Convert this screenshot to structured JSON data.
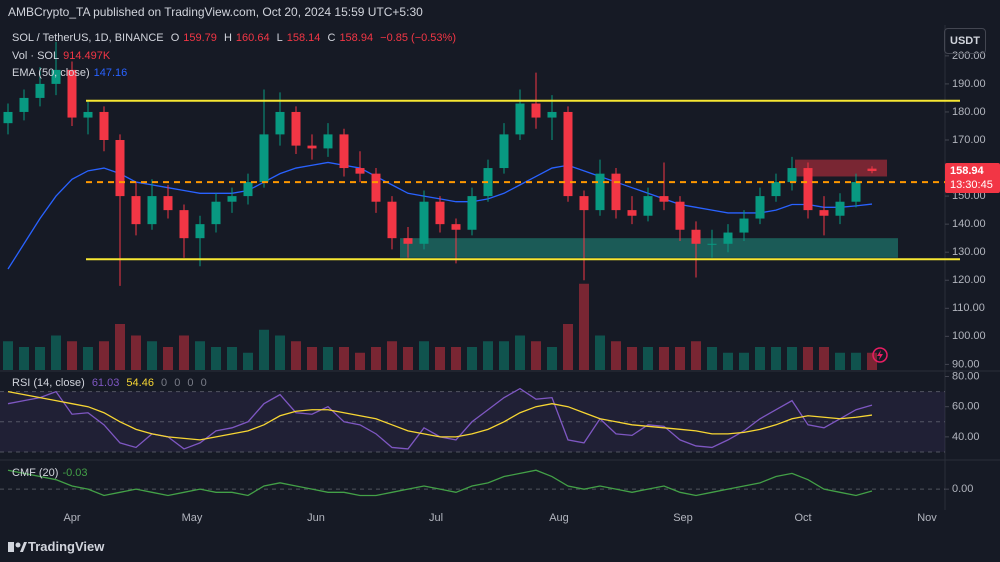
{
  "header": {
    "publisher": "AMBCrypto_TA published on TradingView.com, Oct 20, 2024 15:59 UTC+5:30",
    "currency": "USDT"
  },
  "chart_data": [
    {
      "type": "candlestick",
      "symbol": "SOL / TetherUS, 1D, BINANCE",
      "ohlc_labels": [
        "O",
        "H",
        "L",
        "C"
      ],
      "ohlc_last": [
        159.79,
        160.64,
        158.14,
        158.94
      ],
      "change": "−0.85 (−0.53%)",
      "price_label": 158.94,
      "countdown": "13:30:45",
      "ylim": [
        88,
        211
      ],
      "yticks": [
        {
          "value": 90,
          "label": "90.00"
        },
        {
          "value": 100,
          "label": "100.00"
        },
        {
          "value": 110,
          "label": "110.00"
        },
        {
          "value": 120,
          "label": "120.00"
        },
        {
          "value": 130,
          "label": "130.00"
        },
        {
          "value": 140,
          "label": "140.00"
        },
        {
          "value": 150,
          "label": "150.00"
        },
        {
          "value": 160,
          "label": "160.00"
        },
        {
          "value": 170,
          "label": "170.00"
        },
        {
          "value": 180,
          "label": "180.00"
        },
        {
          "value": 190,
          "label": "190.00"
        },
        {
          "value": 200,
          "label": "200.00"
        }
      ],
      "x_labels": [
        "Apr",
        "May",
        "Jun",
        "Jul",
        "Aug",
        "Sep",
        "Oct",
        "Nov"
      ],
      "up_color": "#089981",
      "down_color": "#f23645",
      "candles": [
        [
          176,
          183,
          172,
          180
        ],
        [
          180,
          188,
          177,
          185
        ],
        [
          185,
          196,
          182,
          190
        ],
        [
          190,
          205,
          186,
          195
        ],
        [
          195,
          198,
          175,
          178
        ],
        [
          178,
          184,
          172,
          180
        ],
        [
          180,
          182,
          166,
          170
        ],
        [
          170,
          172,
          118,
          150
        ],
        [
          150,
          155,
          136,
          140
        ],
        [
          140,
          156,
          138,
          150
        ],
        [
          150,
          154,
          142,
          145
        ],
        [
          145,
          147,
          128,
          135
        ],
        [
          135,
          143,
          125,
          140
        ],
        [
          140,
          151,
          137,
          148
        ],
        [
          148,
          153,
          144,
          150
        ],
        [
          150,
          158,
          147,
          155
        ],
        [
          155,
          188,
          153,
          172
        ],
        [
          172,
          187,
          168,
          180
        ],
        [
          180,
          182,
          165,
          168
        ],
        [
          168,
          172,
          163,
          167
        ],
        [
          167,
          176,
          164,
          172
        ],
        [
          172,
          174,
          157,
          160
        ],
        [
          160,
          166,
          155,
          158
        ],
        [
          158,
          160,
          144,
          148
        ],
        [
          148,
          150,
          131,
          135
        ],
        [
          135,
          139,
          128,
          133
        ],
        [
          133,
          152,
          131,
          148
        ],
        [
          148,
          150,
          137,
          140
        ],
        [
          140,
          142,
          126,
          138
        ],
        [
          138,
          153,
          136,
          150
        ],
        [
          150,
          163,
          148,
          160
        ],
        [
          160,
          176,
          158,
          172
        ],
        [
          172,
          188,
          170,
          183
        ],
        [
          183,
          194,
          174,
          178
        ],
        [
          178,
          186,
          170,
          180
        ],
        [
          180,
          182,
          148,
          150
        ],
        [
          150,
          152,
          120,
          145
        ],
        [
          145,
          163,
          143,
          158
        ],
        [
          158,
          160,
          142,
          145
        ],
        [
          145,
          150,
          140,
          143
        ],
        [
          143,
          153,
          141,
          150
        ],
        [
          150,
          162,
          145,
          148
        ],
        [
          148,
          150,
          134,
          138
        ],
        [
          138,
          141,
          121,
          133
        ],
        [
          133,
          138,
          128,
          133
        ],
        [
          133,
          140,
          130,
          137
        ],
        [
          137,
          145,
          134,
          142
        ],
        [
          142,
          153,
          140,
          150
        ],
        [
          150,
          158,
          148,
          155
        ],
        [
          155,
          164,
          152,
          160
        ],
        [
          160,
          162,
          142,
          145
        ],
        [
          145,
          150,
          136,
          143
        ],
        [
          143,
          151,
          140,
          148
        ],
        [
          148,
          158,
          146,
          155
        ],
        [
          159.79,
          160.64,
          158.14,
          158.94
        ]
      ],
      "volume": {
        "label": "Vol · SOL",
        "last": "914.497K",
        "ylim": [
          0,
          60
        ],
        "values": [
          5,
          4,
          4,
          6,
          5,
          4,
          5,
          8,
          6,
          5,
          4,
          6,
          5,
          4,
          4,
          3,
          7,
          6,
          5,
          4,
          4,
          4,
          3,
          4,
          5,
          4,
          5,
          4,
          4,
          4,
          5,
          5,
          6,
          5,
          4,
          8,
          15,
          6,
          5,
          4,
          4,
          4,
          4,
          5,
          4,
          3,
          3,
          4,
          4,
          4,
          4,
          4,
          3,
          3,
          3
        ]
      },
      "ema": {
        "label": "EMA (50, close)",
        "color": "#2962ff",
        "last": 147.16,
        "values": [
          124,
          133,
          142,
          150,
          156,
          159,
          160,
          158,
          155,
          154,
          153,
          152,
          151,
          151,
          151,
          152,
          155,
          158,
          160,
          161,
          162,
          161,
          160,
          157,
          154,
          151,
          150,
          149,
          148,
          148,
          149,
          151,
          154,
          157,
          160,
          161,
          159,
          157,
          155,
          153,
          151,
          149,
          147,
          146,
          145,
          144,
          144,
          144,
          145,
          147,
          147,
          146,
          146,
          146.5,
          147.16
        ]
      },
      "levels": [
        {
          "value": 184,
          "color": "#f7e733",
          "style": "solid"
        },
        {
          "value": 127.5,
          "color": "#f7e733",
          "style": "solid"
        },
        {
          "value": 155,
          "color": "#ff9800",
          "style": "dashed"
        }
      ],
      "zones": [
        {
          "from": 128,
          "to": 135,
          "color": "#22ab94"
        },
        {
          "from": 157,
          "to": 163,
          "color": "#f23645"
        }
      ]
    },
    {
      "type": "line",
      "label": "RSI (14, close)",
      "readouts": [
        61.03,
        54.46,
        0,
        0,
        0,
        0
      ],
      "ylim": [
        26,
        83
      ],
      "yticks": [
        {
          "value": 40,
          "label": "40.00"
        },
        {
          "value": 60,
          "label": "60.00"
        },
        {
          "value": 80,
          "label": "80.00"
        }
      ],
      "bands": [
        70,
        50,
        30
      ],
      "series": [
        {
          "name": "RSI",
          "color": "#7e57c2",
          "values": [
            62,
            64,
            66,
            70,
            55,
            56,
            48,
            36,
            33,
            42,
            40,
            32,
            36,
            44,
            46,
            50,
            62,
            68,
            56,
            55,
            60,
            50,
            48,
            42,
            33,
            32,
            46,
            40,
            38,
            50,
            58,
            66,
            72,
            65,
            66,
            38,
            36,
            52,
            42,
            41,
            48,
            47,
            38,
            34,
            33,
            38,
            44,
            52,
            58,
            64,
            48,
            46,
            52,
            58,
            61.03
          ]
        },
        {
          "name": "RSI-based MA",
          "color": "#f7d633",
          "values": [
            70,
            68,
            66,
            64,
            62,
            60,
            56,
            50,
            45,
            42,
            40,
            39,
            38,
            40,
            42,
            44,
            48,
            54,
            57,
            58,
            58,
            56,
            54,
            52,
            48,
            44,
            42,
            40,
            40,
            42,
            45,
            50,
            56,
            60,
            62,
            60,
            56,
            52,
            50,
            48,
            47,
            46,
            45,
            44,
            42,
            42,
            43,
            45,
            48,
            52,
            54,
            53,
            52,
            53,
            54.46
          ]
        }
      ]
    },
    {
      "type": "line",
      "label": "CMF (20)",
      "readout": -0.03,
      "ylim": [
        -0.33,
        0.43
      ],
      "yticks": [
        {
          "value": 0,
          "label": "0.00"
        }
      ],
      "series": [
        {
          "name": "CMF",
          "color": "#43a047",
          "values": [
            0.3,
            0.25,
            0.2,
            0.15,
            0.05,
            0.0,
            -0.1,
            -0.05,
            0.0,
            -0.05,
            -0.1,
            -0.05,
            0.0,
            -0.05,
            -0.05,
            -0.1,
            0.05,
            0.1,
            0.05,
            0.0,
            -0.05,
            -0.05,
            -0.1,
            -0.1,
            -0.05,
            0.0,
            0.05,
            0.0,
            -0.05,
            0.05,
            0.1,
            0.2,
            0.25,
            0.3,
            0.2,
            0.05,
            0.0,
            0.05,
            0.0,
            -0.05,
            0.0,
            0.05,
            -0.05,
            -0.1,
            -0.05,
            0.0,
            0.05,
            0.1,
            0.2,
            0.25,
            0.15,
            0.0,
            -0.05,
            -0.1,
            -0.03
          ]
        }
      ]
    }
  ],
  "footer": {
    "brand": "TradingView"
  }
}
